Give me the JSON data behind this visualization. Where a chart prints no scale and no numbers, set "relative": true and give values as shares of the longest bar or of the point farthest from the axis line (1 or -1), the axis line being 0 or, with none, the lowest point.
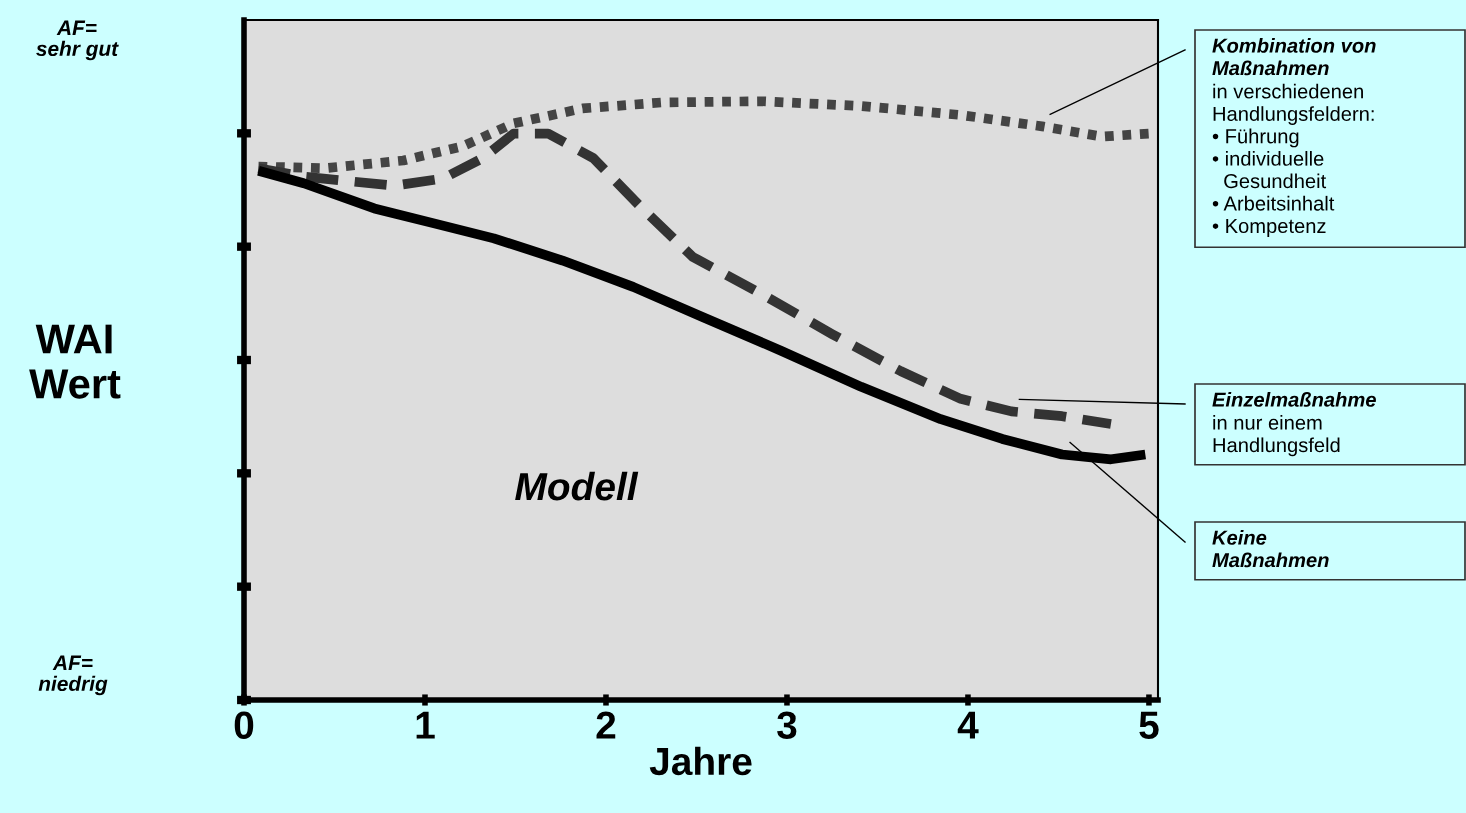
{
  "chart_data": {
    "type": "line",
    "relative": true,
    "xlabel": "Jahre",
    "ylabel": "WAI\nWert",
    "xlim": [
      0,
      5.05
    ],
    "xticks": [
      0,
      1,
      2,
      3,
      4,
      5
    ],
    "grid": false,
    "legend": false,
    "marker": "none",
    "annotations": [
      "AF=\nsehr gut",
      "AF=\nniedrig",
      "Modell",
      "in verschiedenen\nHandlungsfeldern:\n• Führung\n• individuelle\n  Gesundheit\n• Arbeitsinhalt\n• Kompetenz",
      "in nur einem\nHandlungsfeld"
    ],
    "series": [
      {
        "name": "Kombination von\nMaßnahmen",
        "color": "#444444",
        "line_style": "dotted",
        "x": [
          0.08,
          0.44,
          0.88,
          1.21,
          1.49,
          1.87,
          2.31,
          2.86,
          3.41,
          3.96,
          4.41,
          4.74,
          5.0
        ],
        "values": [
          0.891,
          0.888,
          0.901,
          0.925,
          0.963,
          0.988,
          0.998,
          1.0,
          0.992,
          0.977,
          0.958,
          0.941,
          0.946
        ]
      },
      {
        "name": "Einzelmaßnahme",
        "color": "#333333",
        "line_style": "dashed",
        "x": [
          0.08,
          0.33,
          0.83,
          1.1,
          1.32,
          1.49,
          1.68,
          1.93,
          2.2,
          2.48,
          2.86,
          3.25,
          3.63,
          3.96,
          4.24,
          4.52,
          4.79
        ],
        "values": [
          0.888,
          0.874,
          0.859,
          0.871,
          0.905,
          0.946,
          0.946,
          0.905,
          0.821,
          0.74,
          0.678,
          0.611,
          0.549,
          0.503,
          0.482,
          0.474,
          0.461
        ]
      },
      {
        "name": "Keine\nMaßnahmen",
        "color": "#000000",
        "line_style": "solid",
        "x": [
          0.08,
          0.33,
          0.72,
          1.05,
          1.38,
          1.76,
          2.15,
          2.53,
          2.97,
          3.41,
          3.85,
          4.19,
          4.52,
          4.79,
          4.98
        ],
        "values": [
          0.884,
          0.863,
          0.821,
          0.796,
          0.771,
          0.734,
          0.69,
          0.64,
          0.583,
          0.523,
          0.469,
          0.436,
          0.41,
          0.402,
          0.41
        ]
      }
    ]
  }
}
